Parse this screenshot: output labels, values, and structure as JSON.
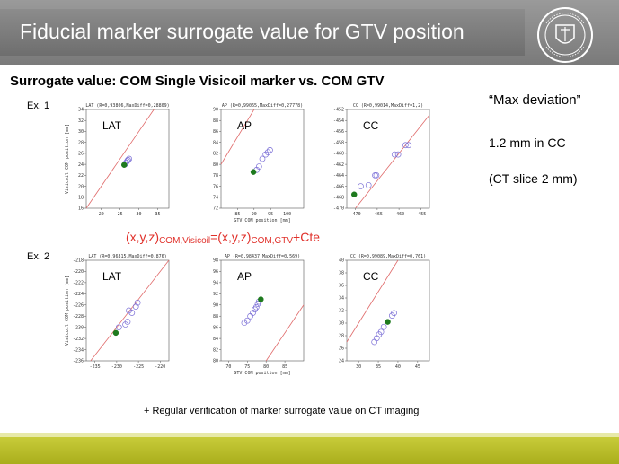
{
  "header": {
    "title": "Fiducial marker surrogate value for GTV position"
  },
  "subtitle": "Surrogate value: COM Single Visicoil marker vs. COM GTV",
  "examples": {
    "ex1": "Ex. 1",
    "ex2": "Ex. 2"
  },
  "notes": {
    "max_deviation": "“Max deviation”",
    "value": "1.2 mm in CC",
    "slice": "(CT slice 2 mm)"
  },
  "equation": {
    "part1": "(x,y,z)",
    "sub1": "COM,Visicoil",
    "part2": "=(x,y,z)",
    "sub2": "COM,GTV",
    "part3": "+Cte"
  },
  "footer_note": "+ Regular verification of marker surrogate value on CT imaging",
  "colors": {
    "open_marker": "#7b6fd6",
    "filled_marker": "#1e7a1e",
    "identity_line": "#e06a6a",
    "footer": "#b5b928",
    "header": "#808080"
  },
  "chart_data": [
    {
      "type": "scatter",
      "panel": "LAT",
      "example": "Ex. 1",
      "title": "LAT (R=0,93806,MaxDiff=0,28809)",
      "xlim": [
        16,
        38
      ],
      "ylim": [
        16,
        34
      ],
      "xticks": [
        20,
        25,
        30,
        35
      ],
      "yticks": [
        16,
        18,
        20,
        22,
        24,
        26,
        28,
        30,
        32,
        34
      ],
      "xlabel": "",
      "ylabel": "Visicoil COM position [mm]",
      "points": [
        [
          26.3,
          24.0
        ],
        [
          26.6,
          24.3
        ],
        [
          26.9,
          24.6
        ],
        [
          27.1,
          24.8
        ],
        [
          27.4,
          25.0
        ]
      ],
      "highlight": [
        [
          26.1,
          23.9
        ]
      ]
    },
    {
      "type": "scatter",
      "panel": "AP",
      "example": "Ex. 1",
      "title": "AP (R=0,99065,MaxDiff=0,27778)",
      "xlim": [
        80,
        105
      ],
      "ylim": [
        72,
        90
      ],
      "xticks": [
        85,
        90,
        95,
        100
      ],
      "yticks": [
        72,
        74,
        76,
        78,
        80,
        82,
        84,
        86,
        88,
        90
      ],
      "xlabel": "GTV COM position [mm]",
      "ylabel": "",
      "points": [
        [
          90.8,
          79.0
        ],
        [
          91.5,
          79.6
        ],
        [
          92.5,
          81.0
        ],
        [
          93.5,
          81.8
        ],
        [
          94.2,
          82.2
        ],
        [
          94.8,
          82.6
        ]
      ],
      "highlight": [
        [
          89.8,
          78.6
        ]
      ]
    },
    {
      "type": "scatter",
      "panel": "CC",
      "example": "Ex. 1",
      "title": "CC (R=0,99014,MaxDiff=1,2)",
      "xlim": [
        -472,
        -453
      ],
      "ylim": [
        -470,
        -452
      ],
      "xticks": [
        -470,
        -465,
        -460,
        -455
      ],
      "yticks": [
        -470,
        -468,
        -466,
        -464,
        -462,
        -460,
        -458,
        -456,
        -454,
        -452
      ],
      "xlabel": "",
      "ylabel": "",
      "points": [
        [
          -468.8,
          -466.0
        ],
        [
          -467.0,
          -465.8
        ],
        [
          -465.5,
          -464.0
        ],
        [
          -465.2,
          -464.0
        ],
        [
          -461.0,
          -460.2
        ],
        [
          -460.2,
          -460.2
        ],
        [
          -458.5,
          -458.5
        ],
        [
          -457.8,
          -458.5
        ]
      ],
      "highlight": [
        [
          -470.3,
          -467.5
        ]
      ]
    },
    {
      "type": "scatter",
      "panel": "LAT",
      "example": "Ex. 2",
      "title": "LAT (R=0,96315,MaxDiff=0,876)",
      "xlim": [
        -237,
        -218
      ],
      "ylim": [
        -236,
        -218
      ],
      "xticks": [
        -235,
        -230,
        -225,
        -220
      ],
      "yticks": [
        -236,
        -234,
        -232,
        -230,
        -228,
        -226,
        -224,
        -222,
        -220,
        -218
      ],
      "xlabel": "",
      "ylabel": "Visicoil COM position [mm]",
      "points": [
        [
          -229.5,
          -230.0
        ],
        [
          -228.0,
          -229.5
        ],
        [
          -227.5,
          -229.0
        ],
        [
          -227.2,
          -227.0
        ],
        [
          -226.5,
          -227.4
        ],
        [
          -225.6,
          -226.3
        ],
        [
          -225.2,
          -225.6
        ]
      ],
      "highlight": [
        [
          -230.2,
          -231.0
        ]
      ]
    },
    {
      "type": "scatter",
      "panel": "AP",
      "example": "Ex. 2",
      "title": "AP (R=0,98437,MaxDiff=0,569)",
      "xlim": [
        68,
        90
      ],
      "ylim": [
        80,
        98
      ],
      "xticks": [
        70,
        75,
        80,
        85
      ],
      "yticks": [
        80,
        82,
        84,
        86,
        88,
        90,
        92,
        94,
        96,
        98
      ],
      "xlabel": "GTV COM position [mm]",
      "ylabel": "",
      "points": [
        [
          74.2,
          86.8
        ],
        [
          75.0,
          87.2
        ],
        [
          75.8,
          88.0
        ],
        [
          76.5,
          88.6
        ],
        [
          77.0,
          89.2
        ],
        [
          77.4,
          89.6
        ],
        [
          77.8,
          90.2
        ],
        [
          78.1,
          90.6
        ]
      ],
      "highlight": [
        [
          78.6,
          91.0
        ]
      ]
    },
    {
      "type": "scatter",
      "panel": "CC",
      "example": "Ex. 2",
      "title": "CC (R=0,99089,MaxDiff=0,761)",
      "xlim": [
        27,
        48
      ],
      "ylim": [
        24,
        40
      ],
      "xticks": [
        30,
        35,
        40,
        45
      ],
      "yticks": [
        24,
        26,
        28,
        30,
        32,
        34,
        36,
        38,
        40
      ],
      "xlabel": "",
      "ylabel": "",
      "points": [
        [
          34.0,
          27.0
        ],
        [
          34.6,
          27.6
        ],
        [
          35.2,
          28.2
        ],
        [
          35.7,
          28.6
        ],
        [
          36.4,
          29.4
        ],
        [
          38.5,
          31.2
        ],
        [
          39.0,
          31.6
        ]
      ],
      "highlight": [
        [
          37.4,
          30.2
        ]
      ]
    }
  ]
}
